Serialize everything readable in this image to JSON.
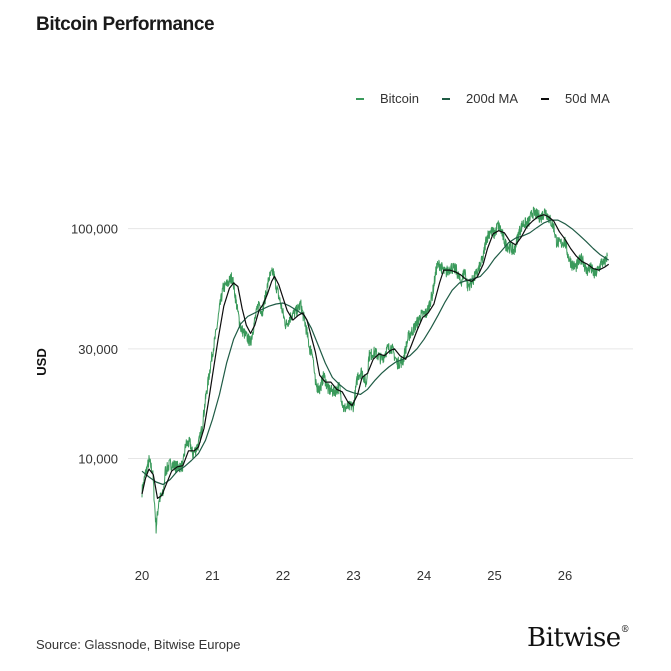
{
  "title": "Bitcoin Performance",
  "source": "Source: Glassnode, Bitwise Europe",
  "logo": {
    "text": "Bitwise",
    "mark": "®"
  },
  "legend": [
    {
      "label": "Bitcoin",
      "color": "#3a9a5b"
    },
    {
      "label": "200d MA",
      "color": "#1f5b45"
    },
    {
      "label": "50d MA",
      "color": "#0d0d0d"
    }
  ],
  "chart_data": {
    "type": "line",
    "title": "Bitcoin Performance",
    "xlabel": "",
    "ylabel": "USD",
    "yscale": "log",
    "ylim": [
      3800,
      220000
    ],
    "xlim": [
      2020.0,
      2026.95
    ],
    "grid": true,
    "legend_position": "top-right",
    "x_ticks": [
      {
        "value": 2020,
        "label": "20"
      },
      {
        "value": 2021,
        "label": "21"
      },
      {
        "value": 2022,
        "label": "22"
      },
      {
        "value": 2023,
        "label": "23"
      },
      {
        "value": 2024,
        "label": "24"
      },
      {
        "value": 2025,
        "label": "25"
      },
      {
        "value": 2026,
        "label": "26"
      }
    ],
    "y_ticks": [
      {
        "value": 10000,
        "label": "10,000"
      },
      {
        "value": 30000,
        "label": "30,000"
      },
      {
        "value": 100000,
        "label": "100,000"
      }
    ],
    "series": [
      {
        "name": "Bitcoin",
        "color": "#3a9a5b",
        "points": [
          [
            2020.0,
            7200
          ],
          [
            2020.05,
            8600
          ],
          [
            2020.1,
            9800
          ],
          [
            2020.15,
            8800
          ],
          [
            2020.2,
            5000
          ],
          [
            2020.24,
            6600
          ],
          [
            2020.3,
            7000
          ],
          [
            2020.33,
            8800
          ],
          [
            2020.4,
            9500
          ],
          [
            2020.5,
            9200
          ],
          [
            2020.58,
            9300
          ],
          [
            2020.62,
            11500
          ],
          [
            2020.68,
            11700
          ],
          [
            2020.72,
            10400
          ],
          [
            2020.8,
            11500
          ],
          [
            2020.85,
            13500
          ],
          [
            2020.9,
            18000
          ],
          [
            2020.96,
            24000
          ],
          [
            2021.0,
            29000
          ],
          [
            2021.05,
            35000
          ],
          [
            2021.1,
            45000
          ],
          [
            2021.15,
            55000
          ],
          [
            2021.22,
            58000
          ],
          [
            2021.28,
            62000
          ],
          [
            2021.35,
            45000
          ],
          [
            2021.4,
            37000
          ],
          [
            2021.48,
            34000
          ],
          [
            2021.54,
            32000
          ],
          [
            2021.6,
            40000
          ],
          [
            2021.66,
            48000
          ],
          [
            2021.7,
            43000
          ],
          [
            2021.76,
            52000
          ],
          [
            2021.8,
            61000
          ],
          [
            2021.86,
            65000
          ],
          [
            2021.9,
            57000
          ],
          [
            2021.96,
            48000
          ],
          [
            2022.04,
            38000
          ],
          [
            2022.12,
            42000
          ],
          [
            2022.2,
            44000
          ],
          [
            2022.25,
            47000
          ],
          [
            2022.32,
            38000
          ],
          [
            2022.38,
            30000
          ],
          [
            2022.42,
            29000
          ],
          [
            2022.46,
            21000
          ],
          [
            2022.52,
            20000
          ],
          [
            2022.58,
            23000
          ],
          [
            2022.64,
            20000
          ],
          [
            2022.72,
            19500
          ],
          [
            2022.8,
            20500
          ],
          [
            2022.86,
            16500
          ],
          [
            2022.94,
            16800
          ],
          [
            2023.0,
            17000
          ],
          [
            2023.06,
            23000
          ],
          [
            2023.12,
            24000
          ],
          [
            2023.18,
            21000
          ],
          [
            2023.22,
            28000
          ],
          [
            2023.3,
            29000
          ],
          [
            2023.4,
            27000
          ],
          [
            2023.48,
            30000
          ],
          [
            2023.54,
            30500
          ],
          [
            2023.62,
            26000
          ],
          [
            2023.7,
            26500
          ],
          [
            2023.78,
            34000
          ],
          [
            2023.86,
            37000
          ],
          [
            2023.96,
            42000
          ],
          [
            2024.04,
            43000
          ],
          [
            2024.12,
            52000
          ],
          [
            2024.18,
            68000
          ],
          [
            2024.22,
            70000
          ],
          [
            2024.3,
            64000
          ],
          [
            2024.38,
            68000
          ],
          [
            2024.46,
            66000
          ],
          [
            2024.52,
            58000
          ],
          [
            2024.58,
            66000
          ],
          [
            2024.62,
            56000
          ],
          [
            2024.7,
            60000
          ],
          [
            2024.78,
            67000
          ],
          [
            2024.84,
            75000
          ],
          [
            2024.88,
            90000
          ],
          [
            2024.94,
            98000
          ],
          [
            2025.0,
            95000
          ],
          [
            2025.05,
            104000
          ],
          [
            2025.1,
            97000
          ],
          [
            2025.16,
            85000
          ],
          [
            2025.22,
            83000
          ],
          [
            2025.28,
            80000
          ],
          [
            2025.34,
            95000
          ],
          [
            2025.4,
            105000
          ],
          [
            2025.48,
            106000
          ],
          [
            2025.54,
            118000
          ],
          [
            2025.6,
            115000
          ],
          [
            2025.66,
            112000
          ],
          [
            2025.72,
            120000
          ],
          [
            2025.78,
            110000
          ],
          [
            2025.84,
            102000
          ],
          [
            2025.88,
            88000
          ],
          [
            2025.93,
            86000
          ],
          [
            2026.0,
            88000
          ],
          [
            2026.05,
            75000
          ],
          [
            2026.1,
            70000
          ],
          [
            2026.15,
            68000
          ],
          [
            2026.2,
            72000
          ],
          [
            2026.25,
            75000
          ],
          [
            2026.3,
            65000
          ],
          [
            2026.36,
            68000
          ],
          [
            2026.42,
            63000
          ],
          [
            2026.48,
            67000
          ],
          [
            2026.52,
            72000
          ],
          [
            2026.55,
            70000
          ],
          [
            2026.6,
            76000
          ]
        ]
      },
      {
        "name": "200d MA",
        "color": "#1f5b45",
        "points": [
          [
            2020.0,
            8800
          ],
          [
            2020.1,
            8300
          ],
          [
            2020.2,
            7900
          ],
          [
            2020.3,
            7700
          ],
          [
            2020.4,
            8100
          ],
          [
            2020.5,
            8800
          ],
          [
            2020.6,
            9200
          ],
          [
            2020.7,
            9800
          ],
          [
            2020.8,
            10500
          ],
          [
            2020.9,
            12000
          ],
          [
            2021.0,
            14800
          ],
          [
            2021.1,
            19000
          ],
          [
            2021.2,
            26000
          ],
          [
            2021.3,
            33000
          ],
          [
            2021.4,
            38500
          ],
          [
            2021.5,
            41500
          ],
          [
            2021.6,
            43000
          ],
          [
            2021.7,
            44500
          ],
          [
            2021.8,
            46000
          ],
          [
            2021.9,
            47000
          ],
          [
            2022.0,
            47500
          ],
          [
            2022.1,
            46000
          ],
          [
            2022.2,
            44000
          ],
          [
            2022.3,
            42000
          ],
          [
            2022.4,
            37000
          ],
          [
            2022.5,
            31000
          ],
          [
            2022.6,
            26000
          ],
          [
            2022.7,
            22500
          ],
          [
            2022.8,
            21000
          ],
          [
            2022.9,
            19800
          ],
          [
            2023.0,
            19300
          ],
          [
            2023.1,
            19000
          ],
          [
            2023.2,
            20000
          ],
          [
            2023.3,
            21800
          ],
          [
            2023.4,
            23500
          ],
          [
            2023.5,
            25000
          ],
          [
            2023.6,
            26300
          ],
          [
            2023.7,
            27000
          ],
          [
            2023.8,
            28000
          ],
          [
            2023.9,
            30000
          ],
          [
            2024.0,
            33000
          ],
          [
            2024.1,
            37000
          ],
          [
            2024.2,
            42000
          ],
          [
            2024.3,
            48000
          ],
          [
            2024.4,
            54000
          ],
          [
            2024.5,
            58000
          ],
          [
            2024.6,
            59500
          ],
          [
            2024.7,
            60500
          ],
          [
            2024.8,
            62000
          ],
          [
            2024.9,
            67000
          ],
          [
            2025.0,
            74000
          ],
          [
            2025.1,
            80000
          ],
          [
            2025.2,
            87000
          ],
          [
            2025.3,
            91000
          ],
          [
            2025.4,
            93000
          ],
          [
            2025.5,
            96000
          ],
          [
            2025.6,
            101000
          ],
          [
            2025.7,
            106000
          ],
          [
            2025.8,
            109000
          ],
          [
            2025.9,
            109000
          ],
          [
            2026.0,
            105000
          ],
          [
            2026.1,
            100000
          ],
          [
            2026.2,
            94000
          ],
          [
            2026.3,
            88000
          ],
          [
            2026.4,
            82000
          ],
          [
            2026.5,
            77000
          ],
          [
            2026.62,
            73000
          ]
        ]
      },
      {
        "name": "50d MA",
        "color": "#0d0d0d",
        "points": [
          [
            2020.0,
            7000
          ],
          [
            2020.05,
            8200
          ],
          [
            2020.1,
            9000
          ],
          [
            2020.16,
            8500
          ],
          [
            2020.22,
            6700
          ],
          [
            2020.28,
            6900
          ],
          [
            2020.35,
            7800
          ],
          [
            2020.42,
            8800
          ],
          [
            2020.5,
            9200
          ],
          [
            2020.58,
            9300
          ],
          [
            2020.66,
            10800
          ],
          [
            2020.74,
            10800
          ],
          [
            2020.8,
            11200
          ],
          [
            2020.88,
            13500
          ],
          [
            2020.94,
            17500
          ],
          [
            2021.0,
            23000
          ],
          [
            2021.08,
            33000
          ],
          [
            2021.16,
            46000
          ],
          [
            2021.24,
            55000
          ],
          [
            2021.3,
            58000
          ],
          [
            2021.36,
            56000
          ],
          [
            2021.42,
            45000
          ],
          [
            2021.48,
            38000
          ],
          [
            2021.54,
            35000
          ],
          [
            2021.6,
            38000
          ],
          [
            2021.66,
            44000
          ],
          [
            2021.72,
            47000
          ],
          [
            2021.78,
            52000
          ],
          [
            2021.84,
            59000
          ],
          [
            2021.88,
            62000
          ],
          [
            2021.94,
            57000
          ],
          [
            2022.0,
            50000
          ],
          [
            2022.06,
            44000
          ],
          [
            2022.14,
            40000
          ],
          [
            2022.22,
            42000
          ],
          [
            2022.28,
            43000
          ],
          [
            2022.34,
            40000
          ],
          [
            2022.4,
            34000
          ],
          [
            2022.46,
            29000
          ],
          [
            2022.52,
            23000
          ],
          [
            2022.6,
            21500
          ],
          [
            2022.68,
            21500
          ],
          [
            2022.76,
            20000
          ],
          [
            2022.84,
            19500
          ],
          [
            2022.92,
            17600
          ],
          [
            2022.98,
            17000
          ],
          [
            2023.06,
            19000
          ],
          [
            2023.12,
            22500
          ],
          [
            2023.2,
            23500
          ],
          [
            2023.28,
            27000
          ],
          [
            2023.36,
            28500
          ],
          [
            2023.44,
            28000
          ],
          [
            2023.52,
            29500
          ],
          [
            2023.58,
            30000
          ],
          [
            2023.66,
            28000
          ],
          [
            2023.74,
            27000
          ],
          [
            2023.82,
            31000
          ],
          [
            2023.9,
            36000
          ],
          [
            2023.98,
            41000
          ],
          [
            2024.06,
            43000
          ],
          [
            2024.14,
            47000
          ],
          [
            2024.22,
            58000
          ],
          [
            2024.28,
            66000
          ],
          [
            2024.36,
            66000
          ],
          [
            2024.44,
            65000
          ],
          [
            2024.52,
            63000
          ],
          [
            2024.6,
            60000
          ],
          [
            2024.68,
            59000
          ],
          [
            2024.76,
            62000
          ],
          [
            2024.84,
            70000
          ],
          [
            2024.9,
            82000
          ],
          [
            2024.98,
            95000
          ],
          [
            2025.06,
            98000
          ],
          [
            2025.14,
            96000
          ],
          [
            2025.22,
            88000
          ],
          [
            2025.3,
            85000
          ],
          [
            2025.38,
            92000
          ],
          [
            2025.46,
            102000
          ],
          [
            2025.54,
            108000
          ],
          [
            2025.62,
            113000
          ],
          [
            2025.7,
            115000
          ],
          [
            2025.76,
            113000
          ],
          [
            2025.84,
            108000
          ],
          [
            2025.92,
            97000
          ],
          [
            2026.0,
            90000
          ],
          [
            2026.08,
            82000
          ],
          [
            2026.16,
            76000
          ],
          [
            2026.24,
            72000
          ],
          [
            2026.32,
            70000
          ],
          [
            2026.4,
            67000
          ],
          [
            2026.48,
            66000
          ],
          [
            2026.56,
            68000
          ],
          [
            2026.62,
            70000
          ]
        ]
      }
    ]
  }
}
